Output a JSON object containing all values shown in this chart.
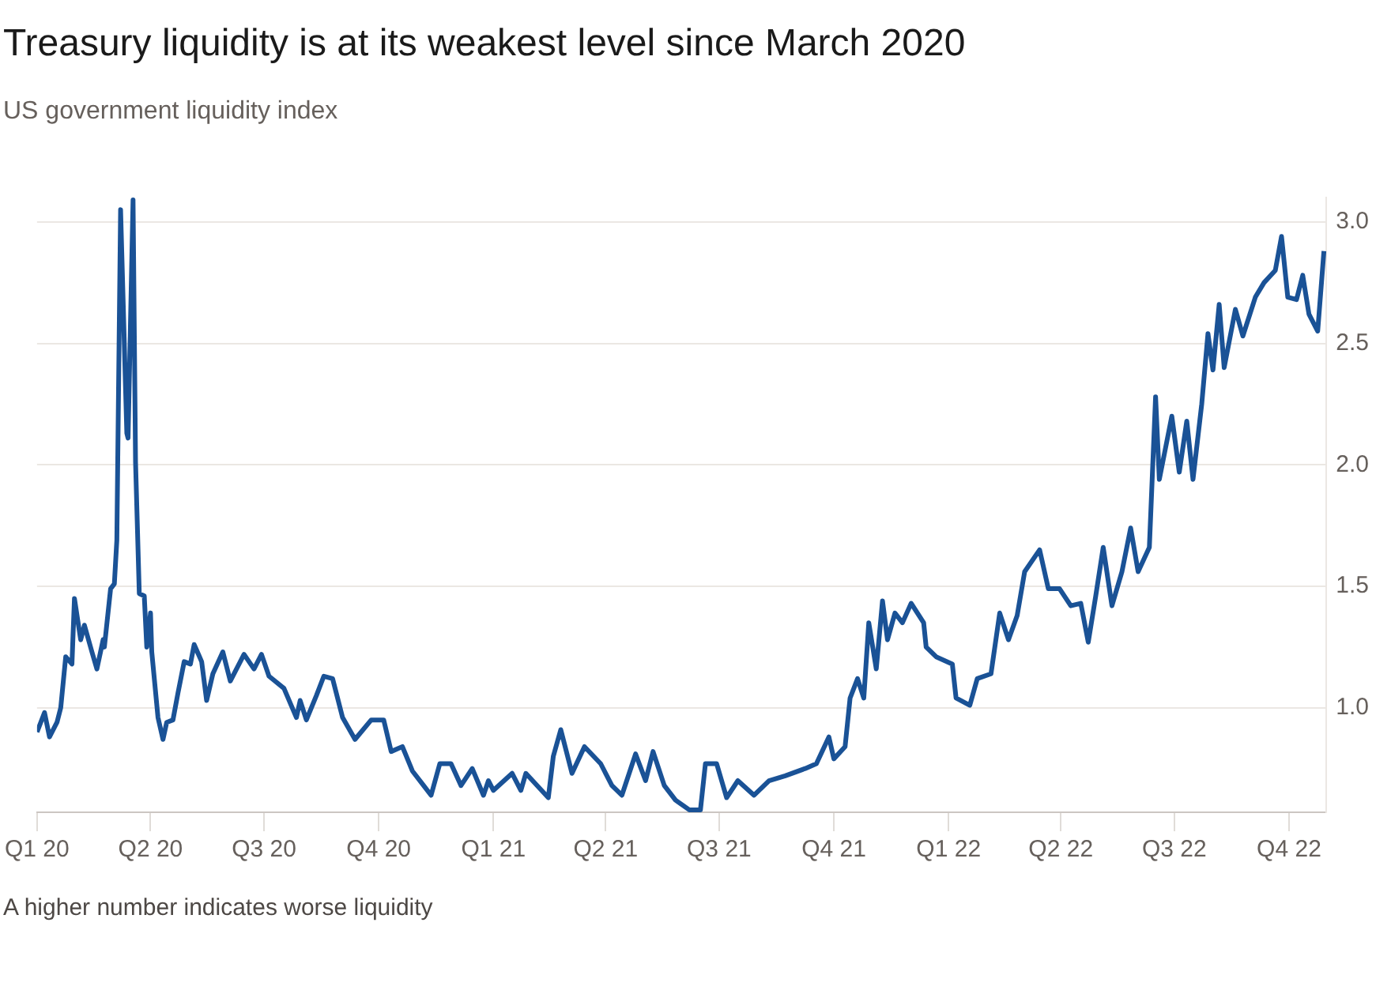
{
  "chart_data": {
    "type": "line",
    "title": "Treasury liquidity is at its weakest level since March 2020",
    "subtitle": "US government liquidity index",
    "annotations": [
      "A higher number indicates worse liquidity"
    ],
    "x": [
      "2020-01-01",
      "2020-01-07",
      "2020-01-11",
      "2020-01-17",
      "2020-01-20",
      "2020-01-24",
      "2020-01-29",
      "2020-01-31",
      "2020-02-05",
      "2020-02-08",
      "2020-02-14",
      "2020-02-18",
      "2020-02-23",
      "2020-02-24",
      "2020-02-29",
      "2020-03-03",
      "2020-03-05",
      "2020-03-08",
      "2020-03-13",
      "2020-03-14",
      "2020-03-18",
      "2020-03-20",
      "2020-03-23",
      "2020-03-27",
      "2020-03-29",
      "2020-04-01",
      "2020-04-02",
      "2020-04-07",
      "2020-04-11",
      "2020-04-14",
      "2020-04-19",
      "2020-04-23",
      "2020-04-28",
      "2020-05-03",
      "2020-05-06",
      "2020-05-12",
      "2020-05-16",
      "2020-05-21",
      "2020-05-29",
      "2020-06-04",
      "2020-06-15",
      "2020-06-23",
      "2020-06-29",
      "2020-07-05",
      "2020-07-17",
      "2020-07-27",
      "2020-07-30",
      "2020-08-04",
      "2020-08-12",
      "2020-08-18",
      "2020-08-25",
      "2020-09-02",
      "2020-09-12",
      "2020-09-25",
      "2020-10-05",
      "2020-10-11",
      "2020-10-20",
      "2020-10-28",
      "2020-11-06",
      "2020-11-12",
      "2020-11-19",
      "2020-11-28",
      "2020-12-06",
      "2020-12-15",
      "2020-12-24",
      "2020-12-28",
      "2021-01-01",
      "2021-01-16",
      "2021-01-23",
      "2021-01-27",
      "2021-02-14",
      "2021-02-18",
      "2021-02-24",
      "2021-03-05",
      "2021-03-15",
      "2021-03-28",
      "2021-04-06",
      "2021-04-14",
      "2021-04-25",
      "2021-05-03",
      "2021-05-09",
      "2021-05-18",
      "2021-05-27",
      "2021-06-07",
      "2021-06-16",
      "2021-06-20",
      "2021-06-29",
      "2021-07-07",
      "2021-07-16",
      "2021-07-29",
      "2021-08-10",
      "2021-08-23",
      "2021-09-08",
      "2021-09-17",
      "2021-09-27",
      "2021-10-01",
      "2021-10-10",
      "2021-10-14",
      "2021-10-20",
      "2021-10-25",
      "2021-10-29",
      "2021-11-04",
      "2021-11-09",
      "2021-11-13",
      "2021-11-19",
      "2021-11-25",
      "2021-12-02",
      "2021-12-12",
      "2021-12-14",
      "2021-12-22",
      "2022-01-04",
      "2022-01-07",
      "2022-01-18",
      "2022-01-24",
      "2022-02-04",
      "2022-02-11",
      "2022-02-18",
      "2022-02-25",
      "2022-03-03",
      "2022-03-15",
      "2022-03-22",
      "2022-03-31",
      "2022-04-09",
      "2022-04-17",
      "2022-04-23",
      "2022-04-29",
      "2022-05-05",
      "2022-05-12",
      "2022-05-20",
      "2022-05-27",
      "2022-06-02",
      "2022-06-11",
      "2022-06-16",
      "2022-06-19",
      "2022-06-29",
      "2022-07-05",
      "2022-07-11",
      "2022-07-16",
      "2022-07-23",
      "2022-07-28",
      "2022-08-01",
      "2022-08-06",
      "2022-08-10",
      "2022-08-19",
      "2022-08-25",
      "2022-09-04",
      "2022-09-11",
      "2022-09-20",
      "2022-09-25",
      "2022-09-30",
      "2022-10-07",
      "2022-10-12",
      "2022-10-17",
      "2022-10-24",
      "2022-10-29"
    ],
    "series": [
      {
        "color": "#1a5296",
        "values": [
          0.9,
          0.98,
          0.88,
          0.94,
          1.0,
          1.21,
          1.18,
          1.45,
          1.28,
          1.34,
          1.23,
          1.16,
          1.28,
          1.25,
          1.49,
          1.51,
          1.69,
          3.05,
          2.13,
          2.11,
          3.09,
          2.01,
          1.47,
          1.46,
          1.25,
          1.39,
          1.23,
          0.96,
          0.87,
          0.94,
          0.95,
          1.06,
          1.19,
          1.18,
          1.26,
          1.19,
          1.03,
          1.14,
          1.23,
          1.11,
          1.22,
          1.16,
          1.22,
          1.13,
          1.08,
          0.96,
          1.03,
          0.95,
          1.05,
          1.13,
          1.12,
          0.96,
          0.87,
          0.95,
          0.95,
          0.82,
          0.84,
          0.74,
          0.68,
          0.64,
          0.77,
          0.77,
          0.68,
          0.75,
          0.64,
          0.7,
          0.66,
          0.73,
          0.66,
          0.73,
          0.63,
          0.8,
          0.91,
          0.73,
          0.84,
          0.77,
          0.68,
          0.64,
          0.81,
          0.7,
          0.82,
          0.68,
          0.62,
          0.58,
          0.58,
          0.77,
          0.77,
          0.63,
          0.7,
          0.64,
          0.7,
          0.72,
          0.75,
          0.77,
          0.88,
          0.79,
          0.84,
          1.04,
          1.12,
          1.04,
          1.35,
          1.16,
          1.44,
          1.28,
          1.39,
          1.35,
          1.43,
          1.35,
          1.25,
          1.21,
          1.18,
          1.04,
          1.01,
          1.12,
          1.14,
          1.39,
          1.28,
          1.38,
          1.56,
          1.65,
          1.49,
          1.49,
          1.42,
          1.43,
          1.27,
          1.46,
          1.66,
          1.42,
          1.56,
          1.74,
          1.56,
          1.66,
          2.28,
          1.94,
          2.2,
          1.97,
          2.18,
          1.94,
          2.25,
          2.54,
          2.39,
          2.66,
          2.4,
          2.64,
          2.53,
          2.69,
          2.75,
          2.8,
          2.94,
          2.69,
          2.68,
          2.78,
          2.62,
          2.55,
          2.88
        ]
      }
    ],
    "xlim": [
      "2020-01-01",
      "2022-10-31"
    ],
    "xticks": [
      {
        "value": "2020-01-01",
        "label": "Q1 20"
      },
      {
        "value": "2020-04-01",
        "label": "Q2 20"
      },
      {
        "value": "2020-07-01",
        "label": "Q3 20"
      },
      {
        "value": "2020-10-01",
        "label": "Q4 20"
      },
      {
        "value": "2021-01-01",
        "label": "Q1 21"
      },
      {
        "value": "2021-04-01",
        "label": "Q2 21"
      },
      {
        "value": "2021-07-01",
        "label": "Q3 21"
      },
      {
        "value": "2021-10-01",
        "label": "Q4 21"
      },
      {
        "value": "2022-01-01",
        "label": "Q1 22"
      },
      {
        "value": "2022-04-01",
        "label": "Q2 22"
      },
      {
        "value": "2022-07-01",
        "label": "Q3 22"
      },
      {
        "value": "2022-10-01",
        "label": "Q4 22"
      }
    ],
    "ylim": [
      0.57,
      3.1
    ],
    "yticks": [
      {
        "value": 1,
        "label": "1.0"
      },
      {
        "value": 1.5,
        "label": "1.5"
      },
      {
        "value": 2,
        "label": "2.0"
      },
      {
        "value": 2.5,
        "label": "2.5"
      },
      {
        "value": 3,
        "label": "3.0"
      }
    ],
    "grid": "y",
    "legend": false,
    "marker": "none",
    "line_style": "solid"
  }
}
